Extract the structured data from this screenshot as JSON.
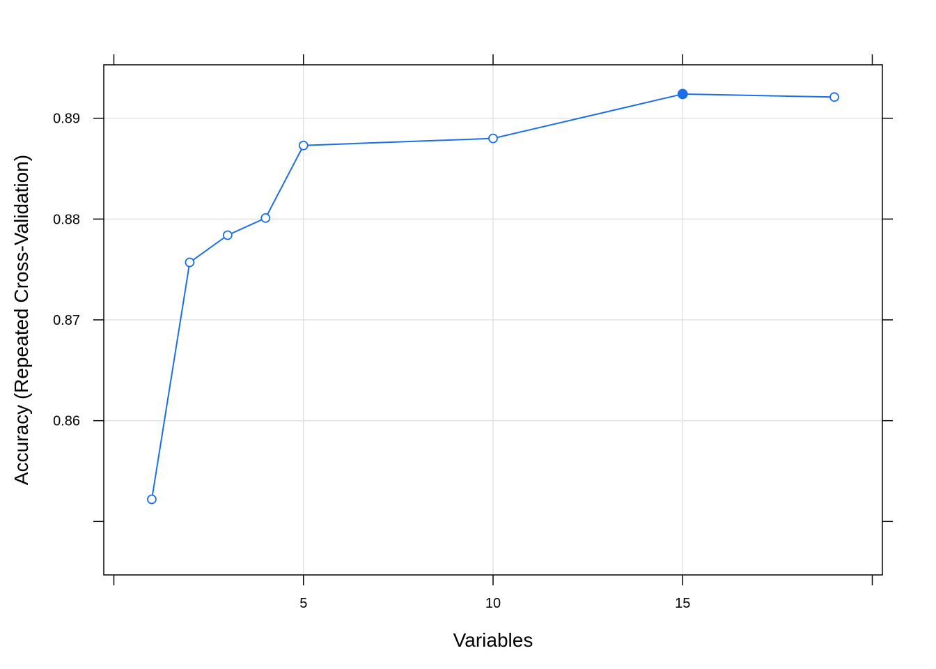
{
  "chart_data": {
    "type": "line",
    "xlabel": "Variables",
    "ylabel": "Accuracy (Repeated Cross-Validation)",
    "xlim": [
      0,
      20
    ],
    "ylim": [
      0.8447,
      0.8953
    ],
    "x_ticks": [
      5,
      10,
      15
    ],
    "x_tick_labels": [
      "5",
      "10",
      "15"
    ],
    "y_ticks": [
      0.86,
      0.87,
      0.88,
      0.89
    ],
    "y_tick_labels": [
      "0.86",
      "0.87",
      "0.88",
      "0.89"
    ],
    "grid": true,
    "line_color": "#1a6ee6",
    "highlight_color": "#1a6ee6",
    "series": [
      {
        "x": [
          1,
          2,
          3,
          4,
          5,
          10,
          15,
          19
        ],
        "y": [
          0.8522,
          0.8757,
          0.8784,
          0.8801,
          0.8873,
          0.888,
          0.8924,
          0.8921
        ],
        "selected_x": 15
      }
    ]
  }
}
